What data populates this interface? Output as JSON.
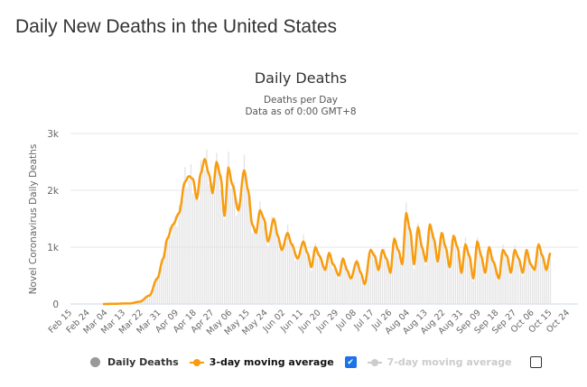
{
  "page": {
    "title": "Daily New Deaths in the United States"
  },
  "chart_data": {
    "type": "bar",
    "title": "Daily Deaths",
    "subtitle": [
      "Deaths per Day",
      "Data as of 0:00 GMT+8"
    ],
    "ylabel": "Novel Coronavirus Daily Deaths",
    "xlabel": "",
    "ylim": [
      0,
      3000
    ],
    "yticks": [
      0,
      1000,
      2000,
      3000
    ],
    "ytick_labels": [
      "0",
      "1k",
      "2k",
      "3k"
    ],
    "grid": true,
    "x_start_date": "Feb 15",
    "total_days": 257,
    "xtick_labels": [
      "Feb 15",
      "Feb 24",
      "Mar 04",
      "Mar 13",
      "Mar 22",
      "Mar 31",
      "Apr 09",
      "Apr 18",
      "Apr 27",
      "May 06",
      "May 15",
      "May 24",
      "Jun 02",
      "Jun 11",
      "Jun 20",
      "Jun 29",
      "Jul 08",
      "Jul 17",
      "Jul 26",
      "Aug 04",
      "Aug 13",
      "Aug 22",
      "Aug 31",
      "Sep 09",
      "Sep 18",
      "Sep 27",
      "Oct 06",
      "Oct 15",
      "Oct 24"
    ],
    "xtick_interval_days": 9,
    "series": [
      {
        "name": "Daily Deaths",
        "type": "bar",
        "color": "#e0e0e0",
        "visible": true
      },
      {
        "name": "3-day moving average",
        "type": "line",
        "color": "#f89c0e",
        "visible": true,
        "points": [
          [
            16,
            0
          ],
          [
            30,
            10
          ],
          [
            35,
            40
          ],
          [
            40,
            150
          ],
          [
            44,
            450
          ],
          [
            47,
            800
          ],
          [
            49,
            1150
          ],
          [
            52,
            1400
          ],
          [
            55,
            1600
          ],
          [
            58,
            2150
          ],
          [
            60,
            2250
          ],
          [
            62,
            2200
          ],
          [
            64,
            1850
          ],
          [
            66,
            2300
          ],
          [
            68,
            2550
          ],
          [
            70,
            2300
          ],
          [
            72,
            1950
          ],
          [
            74,
            2500
          ],
          [
            76,
            2250
          ],
          [
            78,
            1550
          ],
          [
            80,
            2400
          ],
          [
            82,
            2100
          ],
          [
            85,
            1650
          ],
          [
            88,
            2350
          ],
          [
            90,
            2000
          ],
          [
            92,
            1400
          ],
          [
            94,
            1250
          ],
          [
            96,
            1650
          ],
          [
            98,
            1500
          ],
          [
            100,
            1100
          ],
          [
            103,
            1500
          ],
          [
            105,
            1200
          ],
          [
            107,
            950
          ],
          [
            110,
            1250
          ],
          [
            112,
            1050
          ],
          [
            115,
            800
          ],
          [
            118,
            1100
          ],
          [
            120,
            900
          ],
          [
            122,
            650
          ],
          [
            124,
            1000
          ],
          [
            126,
            850
          ],
          [
            129,
            600
          ],
          [
            131,
            900
          ],
          [
            133,
            700
          ],
          [
            136,
            500
          ],
          [
            138,
            800
          ],
          [
            140,
            600
          ],
          [
            142,
            450
          ],
          [
            145,
            750
          ],
          [
            147,
            550
          ],
          [
            149,
            350
          ],
          [
            152,
            950
          ],
          [
            154,
            850
          ],
          [
            156,
            600
          ],
          [
            158,
            950
          ],
          [
            160,
            800
          ],
          [
            162,
            550
          ],
          [
            164,
            1150
          ],
          [
            166,
            950
          ],
          [
            168,
            700
          ],
          [
            170,
            1600
          ],
          [
            172,
            1300
          ],
          [
            174,
            700
          ],
          [
            176,
            1350
          ],
          [
            178,
            1000
          ],
          [
            180,
            750
          ],
          [
            182,
            1400
          ],
          [
            184,
            1150
          ],
          [
            186,
            750
          ],
          [
            188,
            1250
          ],
          [
            190,
            1000
          ],
          [
            192,
            650
          ],
          [
            194,
            1200
          ],
          [
            196,
            1000
          ],
          [
            198,
            550
          ],
          [
            200,
            1050
          ],
          [
            202,
            850
          ],
          [
            204,
            450
          ],
          [
            206,
            1100
          ],
          [
            208,
            850
          ],
          [
            210,
            550
          ],
          [
            212,
            1000
          ],
          [
            214,
            750
          ],
          [
            217,
            450
          ],
          [
            219,
            950
          ],
          [
            221,
            850
          ],
          [
            223,
            550
          ],
          [
            225,
            950
          ],
          [
            227,
            800
          ],
          [
            229,
            550
          ],
          [
            231,
            950
          ],
          [
            233,
            700
          ],
          [
            235,
            600
          ],
          [
            237,
            1050
          ],
          [
            239,
            850
          ],
          [
            241,
            600
          ],
          [
            243,
            900
          ]
        ]
      },
      {
        "name": "7-day moving average",
        "type": "line",
        "color": "#cccccc",
        "visible": false
      }
    ],
    "legend": {
      "position": "bottom",
      "items": [
        {
          "label": "Daily Deaths",
          "checkbox": null
        },
        {
          "label": "3-day moving average",
          "checkbox": true
        },
        {
          "label": "7-day moving average",
          "checkbox": false
        }
      ]
    }
  }
}
